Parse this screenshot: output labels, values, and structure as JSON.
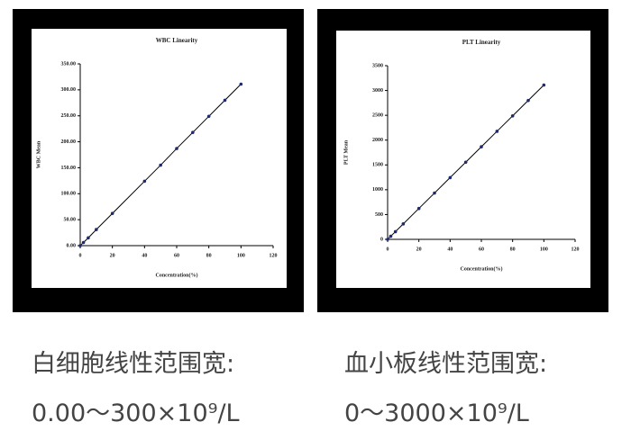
{
  "chart_data": [
    {
      "type": "line",
      "title": "WBC Linearity",
      "x_label": "Concentration(%)",
      "y_label": "WBC Mean",
      "x": [
        0,
        2,
        5,
        10,
        20,
        40,
        50,
        60,
        70,
        80,
        90,
        100
      ],
      "values": [
        0,
        6,
        15,
        31,
        62,
        124,
        155,
        187,
        218,
        249,
        280,
        311
      ],
      "color": "#1f2a6b",
      "line_color": "#000000",
      "xlim": [
        0,
        120
      ],
      "xticks": [
        0,
        20,
        40,
        60,
        80,
        100,
        120
      ],
      "ylim": [
        0,
        350
      ],
      "yticks": [
        {
          "value": 0,
          "label": "0.00"
        },
        {
          "value": 50,
          "label": "50.00"
        },
        {
          "value": 100,
          "label": "100.00"
        },
        {
          "value": 150,
          "label": "150.00"
        },
        {
          "value": 200,
          "label": "200.00"
        },
        {
          "value": 250,
          "label": "250.00"
        },
        {
          "value": 300,
          "label": "300.00"
        },
        {
          "value": 350,
          "label": "350.00"
        }
      ]
    },
    {
      "type": "line",
      "title": "PLT Linearity",
      "x_label": "Concentration(%)",
      "y_label": "PLT Mean",
      "x": [
        0,
        2,
        5,
        10,
        20,
        30,
        40,
        50,
        60,
        70,
        80,
        90,
        100
      ],
      "values": [
        0,
        62,
        155,
        311,
        622,
        933,
        1244,
        1555,
        1866,
        2177,
        2488,
        2799,
        3110
      ],
      "color": "#1f2a6b",
      "line_color": "#000000",
      "xlim": [
        0,
        120
      ],
      "xticks": [
        0,
        20,
        40,
        60,
        80,
        100,
        120
      ],
      "ylim": [
        0,
        3500
      ],
      "yticks": [
        0,
        500,
        1000,
        1500,
        2000,
        2500,
        3000,
        3500
      ]
    }
  ],
  "captions": [
    {
      "title": "白细胞线性范围宽:",
      "range": "0.00～300×10⁹/L"
    },
    {
      "title": "血小板线性范围宽:",
      "range": "0～3000×10⁹/L"
    }
  ]
}
